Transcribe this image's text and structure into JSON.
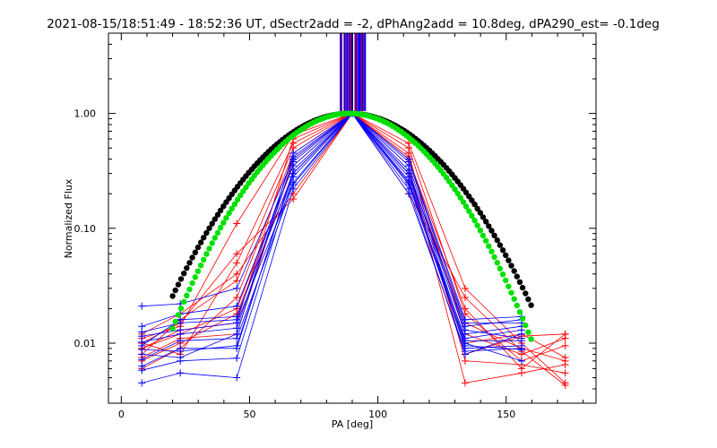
{
  "chart_data": {
    "type": "line",
    "title": "2021-08-15/18:51:49 - 18:52:36 UT, dSectr2add = -2, dPhAng2add = 10.8deg, dPA290_est= -0.1deg",
    "xlabel": "PA [deg]",
    "ylabel": "Normalized Flux",
    "xlim": [
      -5,
      185
    ],
    "ylim": [
      0.003,
      5
    ],
    "yscale": "log",
    "x_ticks": [
      0,
      50,
      100,
      150
    ],
    "x_tick_labels": [
      "0",
      "50",
      "100",
      "150"
    ],
    "y_ticks": [
      0.01,
      0.1,
      1.0
    ],
    "y_tick_labels": [
      "0.01",
      "0.10",
      "1.00"
    ],
    "grid": false,
    "vertical_markers": {
      "red_x": [
        86,
        87.5,
        88.5,
        89.5,
        91,
        92,
        93.5,
        94.5
      ],
      "blue_x": [
        85.5,
        87,
        88,
        89,
        90,
        91.5,
        92.5,
        93,
        94,
        95
      ],
      "black_x": [
        90
      ]
    },
    "model_curves": [
      {
        "color": "#000000",
        "center": 89,
        "sigma": 25.5
      },
      {
        "color": "#00e000",
        "center": 89,
        "sigma": 23.5
      }
    ],
    "series": [
      {
        "color": "#ff0000",
        "x": [
          8,
          23,
          45,
          67,
          90,
          112,
          134,
          156,
          173
        ],
        "y": [
          0.009,
          0.012,
          0.02,
          0.35,
          1.0,
          0.3,
          0.015,
          0.009,
          0.007
        ]
      },
      {
        "color": "#ff0000",
        "x": [
          8,
          23,
          45,
          67,
          90,
          112,
          134,
          156,
          173
        ],
        "y": [
          0.006,
          0.009,
          0.025,
          0.45,
          1.0,
          0.4,
          0.02,
          0.006,
          0.012
        ]
      },
      {
        "color": "#ff0000",
        "x": [
          8,
          23,
          45,
          67,
          90,
          112,
          134,
          156,
          173
        ],
        "y": [
          0.011,
          0.014,
          0.11,
          0.65,
          1.0,
          0.55,
          0.03,
          0.01,
          0.0045
        ]
      },
      {
        "color": "#ff0000",
        "x": [
          8,
          23,
          45,
          67,
          90,
          112,
          134,
          156,
          173
        ],
        "y": [
          0.008,
          0.016,
          0.035,
          0.5,
          1.0,
          0.42,
          0.012,
          0.008,
          0.011
        ]
      },
      {
        "color": "#ff0000",
        "x": [
          8,
          23,
          45,
          67,
          90,
          112,
          134,
          156,
          173
        ],
        "y": [
          0.007,
          0.01,
          0.018,
          0.3,
          1.0,
          0.25,
          0.01,
          0.012,
          0.0075
        ]
      },
      {
        "color": "#ff0000",
        "x": [
          8,
          23,
          45,
          67,
          90,
          112,
          134,
          156,
          173
        ],
        "y": [
          0.01,
          0.008,
          0.05,
          0.55,
          1.0,
          0.35,
          0.0045,
          0.0055,
          0.0065
        ]
      },
      {
        "color": "#ff0000",
        "x": [
          8,
          23,
          45,
          67,
          90,
          112,
          134,
          156,
          173
        ],
        "y": [
          0.012,
          0.018,
          0.04,
          0.2,
          1.0,
          0.2,
          0.025,
          0.0085,
          0.0043
        ]
      },
      {
        "color": "#ff0000",
        "x": [
          8,
          23,
          45,
          67,
          90,
          112,
          134,
          156,
          173
        ],
        "y": [
          0.009,
          0.013,
          0.015,
          0.6,
          1.0,
          0.5,
          0.018,
          0.007,
          0.0095
        ]
      },
      {
        "color": "#ff0000",
        "x": [
          8,
          23,
          45,
          67,
          90,
          112,
          134,
          156,
          173
        ],
        "y": [
          0.0075,
          0.011,
          0.012,
          0.4,
          1.0,
          0.3,
          0.008,
          0.0115,
          0.012
        ]
      },
      {
        "color": "#ff0000",
        "x": [
          8,
          23,
          45,
          67,
          90,
          112,
          134,
          156,
          173
        ],
        "y": [
          0.01,
          0.015,
          0.06,
          0.18,
          1.0,
          0.45,
          0.007,
          0.0065,
          0.0055
        ]
      },
      {
        "color": "#0000ff",
        "x": [
          8,
          23,
          45,
          67,
          90,
          112,
          134,
          156
        ],
        "y": [
          0.021,
          0.022,
          0.03,
          0.4,
          1.0,
          0.3,
          0.014,
          0.016
        ]
      },
      {
        "color": "#0000ff",
        "x": [
          8,
          23,
          45,
          67,
          90,
          112,
          134,
          156
        ],
        "y": [
          0.014,
          0.018,
          0.021,
          0.35,
          1.0,
          0.25,
          0.011,
          0.013
        ]
      },
      {
        "color": "#0000ff",
        "x": [
          8,
          23,
          45,
          67,
          90,
          112,
          134,
          156
        ],
        "y": [
          0.0095,
          0.016,
          0.017,
          0.3,
          1.0,
          0.35,
          0.013,
          0.011
        ]
      },
      {
        "color": "#0000ff",
        "x": [
          8,
          23,
          45,
          67,
          90,
          112,
          134,
          156
        ],
        "y": [
          0.0115,
          0.013,
          0.015,
          0.25,
          1.0,
          0.28,
          0.009,
          0.0095
        ]
      },
      {
        "color": "#0000ff",
        "x": [
          8,
          23,
          45,
          67,
          90,
          112,
          134,
          156
        ],
        "y": [
          0.008,
          0.0075,
          0.012,
          0.45,
          1.0,
          0.32,
          0.012,
          0.014
        ]
      },
      {
        "color": "#0000ff",
        "x": [
          8,
          23,
          45,
          67,
          90,
          112,
          134,
          156
        ],
        "y": [
          0.0058,
          0.007,
          0.0074,
          0.28,
          1.0,
          0.22,
          0.008,
          0.012
        ]
      },
      {
        "color": "#0000ff",
        "x": [
          8,
          23,
          45,
          67,
          90,
          112,
          134,
          156
        ],
        "y": [
          0.0063,
          0.009,
          0.009,
          0.32,
          1.0,
          0.4,
          0.016,
          0.017
        ]
      },
      {
        "color": "#0000ff",
        "x": [
          8,
          23,
          45,
          67,
          90,
          112,
          134,
          156
        ],
        "y": [
          0.0045,
          0.0055,
          0.005,
          0.22,
          1.0,
          0.26,
          0.01,
          0.007
        ]
      },
      {
        "color": "#0000ff",
        "x": [
          8,
          23,
          45,
          67,
          90,
          112,
          134,
          156
        ],
        "y": [
          0.0102,
          0.012,
          0.0135,
          0.38,
          1.0,
          0.3,
          0.0105,
          0.0105
        ]
      },
      {
        "color": "#0000ff",
        "x": [
          8,
          23,
          45,
          67,
          90,
          112,
          134,
          156
        ],
        "y": [
          0.0072,
          0.0105,
          0.011,
          0.24,
          1.0,
          0.2,
          0.0085,
          0.009
        ]
      },
      {
        "color": "#0000ff",
        "x": [
          8,
          23,
          45,
          67,
          90,
          112,
          134,
          156
        ],
        "y": [
          0.0125,
          0.015,
          0.016,
          0.42,
          1.0,
          0.38,
          0.015,
          0.015
        ]
      },
      {
        "color": "#0000ff",
        "x": [
          8,
          23,
          45,
          67,
          90,
          112,
          134,
          156
        ],
        "y": [
          0.0088,
          0.0085,
          0.0095,
          0.3,
          1.0,
          0.24,
          0.0095,
          0.0088
        ]
      }
    ]
  }
}
